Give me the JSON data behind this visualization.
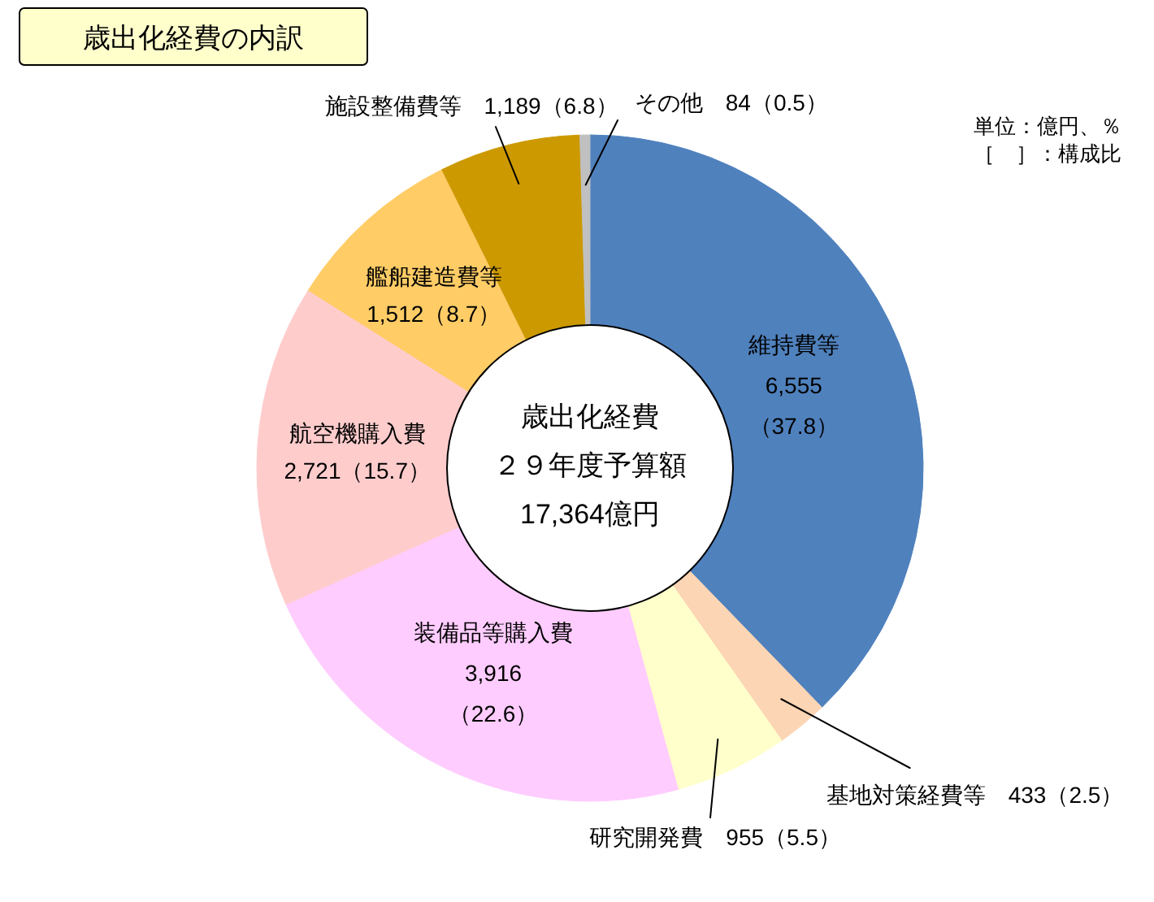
{
  "chart_data": {
    "type": "donut",
    "title": "歳出化経費の内訳",
    "categories": [
      "維持費等",
      "基地対策経費等",
      "研究開発費",
      "装備品等購入費",
      "航空機購入費",
      "艦船建造費等",
      "施設整備費等",
      "その他"
    ],
    "values": [
      6555,
      433,
      955,
      3916,
      2721,
      1512,
      1189,
      84
    ],
    "value_labels": [
      "6,555（37.8）",
      "433（2.5）",
      "955（5.5）",
      "3,916（22.6）",
      "2,721（15.7）",
      "1,512（8.7）",
      "1,189（6.8）",
      "84（0.5）"
    ],
    "colors": [
      "#4f81bd",
      "#fcd5b5",
      "#ffffcc",
      "#ffccff",
      "#ffcccc",
      "#ffcc66",
      "#cc9900",
      "#c0c0c0"
    ],
    "annotations": [
      "歳出化経費",
      "２９年度予算額",
      "17,364億円",
      "単位：億円、％",
      "［　］：構成比"
    ]
  }
}
